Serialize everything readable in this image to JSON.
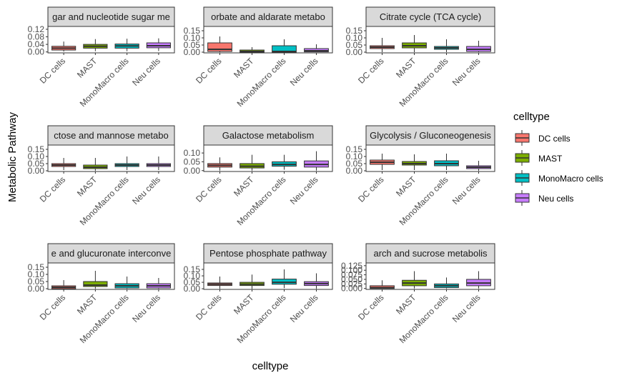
{
  "chart_data": {
    "type": "boxplot-facets",
    "xlabel": "celltype",
    "ylabel": "Metabolic Pathway",
    "categories": [
      "DC cells",
      "MAST",
      "MonoMacro cells",
      "Neu cells"
    ],
    "legend": {
      "title": "celltype",
      "position": "right",
      "entries": [
        {
          "label": "DC cells",
          "color": "#F8766D"
        },
        {
          "label": "MAST",
          "color": "#7CAE00"
        },
        {
          "label": "MonoMacro cells",
          "color": "#00BFC4"
        },
        {
          "label": "Neu cells",
          "color": "#C77CFF"
        }
      ]
    },
    "facets": [
      {
        "title": "Amino sugar and nucleotide sugar metabolism",
        "strip_visible": "gar and nucleotide sugar me",
        "ylim": [
          -0.005,
          0.135
        ],
        "yticks": [
          0.0,
          0.04,
          0.08,
          0.12
        ],
        "ytick_labels": [
          "0.00",
          "0.04",
          "0.08",
          "0.12"
        ],
        "boxes": [
          {
            "min": 0.002,
            "q1": 0.01,
            "median": 0.02,
            "q3": 0.03,
            "max": 0.055
          },
          {
            "min": 0.004,
            "q1": 0.02,
            "median": 0.03,
            "q3": 0.04,
            "max": 0.068
          },
          {
            "min": 0.004,
            "q1": 0.02,
            "median": 0.032,
            "q3": 0.042,
            "max": 0.07
          },
          {
            "min": 0.005,
            "q1": 0.022,
            "median": 0.033,
            "q3": 0.048,
            "max": 0.072
          }
        ]
      },
      {
        "title": "Ascorbate and aldarate metabolism",
        "strip_visible": "orbate and aldarate metabo",
        "ylim": [
          -0.005,
          0.18
        ],
        "yticks": [
          0.0,
          0.05,
          0.1,
          0.15
        ],
        "ytick_labels": [
          "0.00",
          "0.05",
          "0.10",
          "0.15"
        ],
        "boxes": [
          {
            "min": 0.0,
            "q1": 0.005,
            "median": 0.02,
            "q3": 0.065,
            "max": 0.11
          },
          {
            "min": 0.0,
            "q1": 0.0,
            "median": 0.005,
            "q3": 0.015,
            "max": 0.035
          },
          {
            "min": 0.0,
            "q1": 0.0,
            "median": 0.005,
            "q3": 0.045,
            "max": 0.09
          },
          {
            "min": 0.0,
            "q1": 0.002,
            "median": 0.01,
            "q3": 0.025,
            "max": 0.055
          }
        ]
      },
      {
        "title": "Citrate cycle (TCA cycle)",
        "strip_visible": "Citrate cycle (TCA cycle)",
        "ylim": [
          -0.005,
          0.18
        ],
        "yticks": [
          0.0,
          0.05,
          0.1,
          0.15
        ],
        "ytick_labels": [
          "0.00",
          "0.05",
          "0.10",
          "0.15"
        ],
        "boxes": [
          {
            "min": 0.0,
            "q1": 0.025,
            "median": 0.035,
            "q3": 0.045,
            "max": 0.1
          },
          {
            "min": 0.0,
            "q1": 0.03,
            "median": 0.045,
            "q3": 0.065,
            "max": 0.12
          },
          {
            "min": 0.0,
            "q1": 0.02,
            "median": 0.03,
            "q3": 0.04,
            "max": 0.09
          },
          {
            "min": 0.0,
            "q1": 0.005,
            "median": 0.02,
            "q3": 0.04,
            "max": 0.08
          }
        ]
      },
      {
        "title": "Fructose and mannose metabolism",
        "strip_visible": "ctose and mannose metabo",
        "ylim": [
          -0.005,
          0.18
        ],
        "yticks": [
          0.0,
          0.05,
          0.1,
          0.15
        ],
        "ytick_labels": [
          "0.00",
          "0.05",
          "0.10",
          "0.15"
        ],
        "boxes": [
          {
            "min": 0.005,
            "q1": 0.03,
            "median": 0.04,
            "q3": 0.05,
            "max": 0.09
          },
          {
            "min": 0.0,
            "q1": 0.015,
            "median": 0.025,
            "q3": 0.04,
            "max": 0.09
          },
          {
            "min": 0.005,
            "q1": 0.03,
            "median": 0.04,
            "q3": 0.05,
            "max": 0.1
          },
          {
            "min": 0.005,
            "q1": 0.03,
            "median": 0.04,
            "q3": 0.05,
            "max": 0.1
          }
        ]
      },
      {
        "title": "Galactose metabolism",
        "strip_visible": "Galactose metabolism",
        "ylim": [
          -0.005,
          0.145
        ],
        "yticks": [
          0.0,
          0.05,
          0.1
        ],
        "ytick_labels": [
          "0.00",
          "0.05",
          "0.10"
        ],
        "boxes": [
          {
            "min": 0.0,
            "q1": 0.02,
            "median": 0.03,
            "q3": 0.04,
            "max": 0.075
          },
          {
            "min": 0.0,
            "q1": 0.015,
            "median": 0.025,
            "q3": 0.04,
            "max": 0.09
          },
          {
            "min": 0.005,
            "q1": 0.025,
            "median": 0.035,
            "q3": 0.05,
            "max": 0.09
          },
          {
            "min": 0.0,
            "q1": 0.02,
            "median": 0.035,
            "q3": 0.055,
            "max": 0.11
          }
        ]
      },
      {
        "title": "Glycolysis / Gluconeogenesis",
        "strip_visible": "Glycolysis / Gluconeogenesis",
        "ylim": [
          -0.005,
          0.18
        ],
        "yticks": [
          0.0,
          0.05,
          0.1,
          0.15
        ],
        "ytick_labels": [
          "0.00",
          "0.05",
          "0.10",
          "0.15"
        ],
        "boxes": [
          {
            "min": 0.005,
            "q1": 0.045,
            "median": 0.06,
            "q3": 0.075,
            "max": 0.12
          },
          {
            "min": 0.005,
            "q1": 0.04,
            "median": 0.05,
            "q3": 0.065,
            "max": 0.115
          },
          {
            "min": 0.005,
            "q1": 0.035,
            "median": 0.05,
            "q3": 0.07,
            "max": 0.12
          },
          {
            "min": 0.0,
            "q1": 0.015,
            "median": 0.025,
            "q3": 0.035,
            "max": 0.07
          }
        ]
      },
      {
        "title": "Pentose and glucuronate interconversions",
        "strip_visible": "e and glucuronate interconve",
        "ylim": [
          -0.005,
          0.18
        ],
        "yticks": [
          0.0,
          0.05,
          0.1,
          0.15
        ],
        "ytick_labels": [
          "0.00",
          "0.05",
          "0.10",
          "0.15"
        ],
        "boxes": [
          {
            "min": 0.0,
            "q1": 0.0,
            "median": 0.01,
            "q3": 0.02,
            "max": 0.06
          },
          {
            "min": 0.0,
            "q1": 0.015,
            "median": 0.025,
            "q3": 0.05,
            "max": 0.125
          },
          {
            "min": 0.0,
            "q1": 0.005,
            "median": 0.02,
            "q3": 0.035,
            "max": 0.085
          },
          {
            "min": 0.0,
            "q1": 0.005,
            "median": 0.02,
            "q3": 0.035,
            "max": 0.075
          }
        ]
      },
      {
        "title": "Pentose phosphate pathway",
        "strip_visible": "Pentose phosphate pathway",
        "ylim": [
          -0.005,
          0.2
        ],
        "yticks": [
          0.0,
          0.05,
          0.1,
          0.15
        ],
        "ytick_labels": [
          "0.00",
          "0.05",
          "0.10",
          "0.15"
        ],
        "boxes": [
          {
            "min": 0.0,
            "q1": 0.025,
            "median": 0.035,
            "q3": 0.045,
            "max": 0.095
          },
          {
            "min": 0.0,
            "q1": 0.025,
            "median": 0.035,
            "q3": 0.05,
            "max": 0.11
          },
          {
            "min": 0.005,
            "q1": 0.035,
            "median": 0.05,
            "q3": 0.075,
            "max": 0.15
          },
          {
            "min": 0.0,
            "q1": 0.025,
            "median": 0.04,
            "q3": 0.055,
            "max": 0.12
          }
        ]
      },
      {
        "title": "Starch and sucrose metabolism",
        "strip_visible": "arch and sucrose metabolis",
        "ylim": [
          -0.005,
          0.14
        ],
        "yticks": [
          0.0,
          0.025,
          0.05,
          0.075,
          0.1,
          0.125
        ],
        "ytick_labels": [
          "0.000",
          "0.025",
          "0.050",
          "0.075",
          "0.100",
          "0.125"
        ],
        "boxes": [
          {
            "min": 0.0,
            "q1": 0.0,
            "median": 0.005,
            "q3": 0.015,
            "max": 0.045
          },
          {
            "min": 0.0,
            "q1": 0.015,
            "median": 0.03,
            "q3": 0.045,
            "max": 0.095
          },
          {
            "min": 0.0,
            "q1": 0.005,
            "median": 0.015,
            "q3": 0.025,
            "max": 0.06
          },
          {
            "min": 0.0,
            "q1": 0.015,
            "median": 0.03,
            "q3": 0.05,
            "max": 0.095
          }
        ]
      }
    ]
  }
}
